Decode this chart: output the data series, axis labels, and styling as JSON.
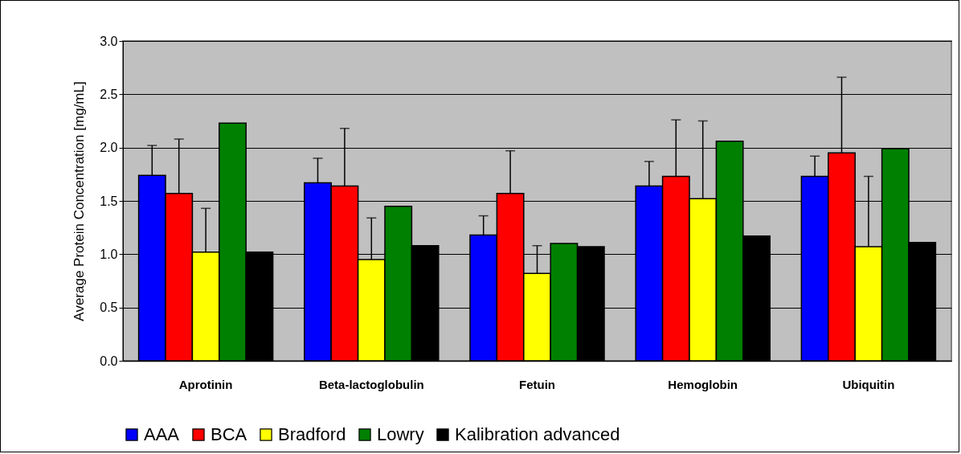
{
  "chart_data": {
    "type": "bar",
    "ylabel": "Average Protein Concentration [mg/mL]",
    "categories": [
      "Aprotinin",
      "Beta-lactoglobulin",
      "Fetuin",
      "Hemoglobin",
      "Ubiquitin"
    ],
    "series": [
      {
        "name": "AAA",
        "color": "#0000ff",
        "values": [
          1.74,
          1.67,
          1.18,
          1.64,
          1.73
        ],
        "errors": [
          [
            1.74,
            2.02
          ],
          [
            1.67,
            1.9
          ],
          [
            1.18,
            1.36
          ],
          [
            1.64,
            1.87
          ],
          [
            1.73,
            1.92
          ]
        ]
      },
      {
        "name": "BCA",
        "color": "#ff0000",
        "values": [
          1.57,
          1.64,
          1.57,
          1.73,
          1.95
        ],
        "errors": [
          [
            1.57,
            2.08
          ],
          [
            1.64,
            2.18
          ],
          [
            1.57,
            1.97
          ],
          [
            1.73,
            2.26
          ],
          [
            1.95,
            2.66
          ]
        ]
      },
      {
        "name": "Bradford",
        "color": "#ffff00",
        "values": [
          1.02,
          0.95,
          0.82,
          1.52,
          1.07
        ],
        "errors": [
          [
            1.02,
            1.43
          ],
          [
            0.95,
            1.34
          ],
          [
            0.82,
            1.08
          ],
          [
            1.52,
            2.25
          ],
          [
            1.07,
            1.73
          ]
        ]
      },
      {
        "name": "Lowry",
        "color": "#008000",
        "values": [
          2.23,
          1.45,
          1.1,
          2.06,
          1.99
        ]
      },
      {
        "name": "Kalibration advanced",
        "color": "#000000",
        "values": [
          1.02,
          1.08,
          1.07,
          1.17,
          1.11
        ]
      }
    ],
    "ylim": [
      0,
      3
    ],
    "yticks": [
      {
        "value": 0,
        "label": "0.0"
      },
      0.5,
      {
        "value": 1,
        "label": "1.0"
      },
      1.5,
      {
        "value": 2,
        "label": "2.0"
      },
      2.5,
      {
        "value": 3,
        "label": "3.0"
      }
    ],
    "grid": "y",
    "legend": "bottom"
  }
}
